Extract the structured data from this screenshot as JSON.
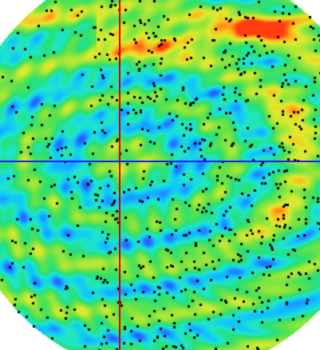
{
  "image": {
    "description_colors": {
      "background": "#ffffff",
      "colormap": [
        "#1b3fd6",
        "#2a62ff",
        "#0fc2ff",
        "#20e6c8",
        "#25e07a",
        "#5fe24a",
        "#9ee63a",
        "#e0ea2c",
        "#ffb21d",
        "#ff3b10"
      ]
    },
    "dots": {
      "color": "#000000"
    },
    "crosshair": {
      "vertical_line_color": "#d30000",
      "horizontal_line_color": "#1a1aff"
    }
  }
}
